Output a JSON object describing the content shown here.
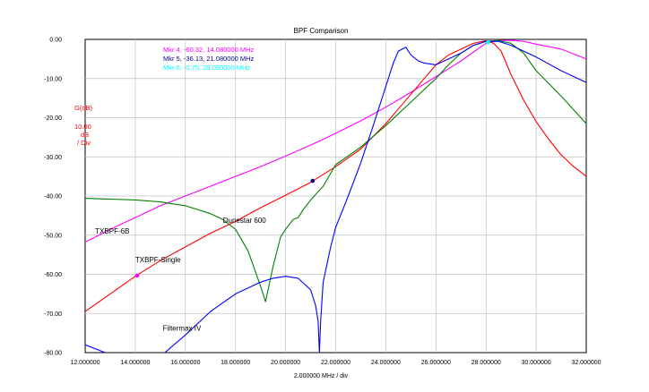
{
  "chart_data": {
    "type": "line",
    "title": "BPF Comparison",
    "xlabel": "2.000000 MHz / div",
    "ylabel_lines": [
      "G(dB)",
      "10.00",
      "dB",
      "/ Div"
    ],
    "xlim": [
      12,
      32
    ],
    "ylim": [
      -80,
      0
    ],
    "x_ticks": [
      "12.000000",
      "14.000000",
      "16.000000",
      "18.000000",
      "20.000000",
      "22.000000",
      "24.000000",
      "26.000000",
      "28.000000",
      "30.000000",
      "32.000000"
    ],
    "y_ticks": [
      "0.00",
      "-10.00",
      "-20.00",
      "-30.00",
      "-40.00",
      "-50.00",
      "-60.00",
      "-70.00",
      "-80.00"
    ],
    "grid": true,
    "markers": [
      {
        "text": "Mkr 4, -60.32, 14.080000 MHz",
        "color": "#ff00ff",
        "x": 14.08,
        "y": -60.32
      },
      {
        "text": "Mkr 5, -36.13, 21.080000 MHz",
        "color": "#000080",
        "x": 21.08,
        "y": -36.13
      },
      {
        "text": "Mkr 6, -0.75, 28.080000 MHz",
        "color": "#00ffff",
        "x": 28.08,
        "y": -0.75
      }
    ],
    "series": [
      {
        "name": "TXBPF-6B",
        "color": "#ff00ff",
        "label_at": [
          12.4,
          -49.6
        ],
        "x": [
          12,
          13,
          14,
          15,
          16,
          17,
          18,
          19,
          20,
          21,
          22,
          23,
          24,
          25,
          26,
          26.5,
          27,
          27.5,
          28,
          28.5,
          29,
          29.5,
          30,
          31,
          32
        ],
        "y": [
          -51.8,
          -48.5,
          -45.5,
          -42.5,
          -40,
          -37.5,
          -35,
          -32.5,
          -29.8,
          -27,
          -24,
          -20.8,
          -17.3,
          -13.5,
          -9.5,
          -7.5,
          -5.5,
          -3.2,
          -1,
          -0.3,
          -0.2,
          -0.5,
          -1.2,
          -2.5,
          -5
        ]
      },
      {
        "name": "TXBPF-Single",
        "color": "#ff0000",
        "label_at": [
          14.0,
          -56.9
        ],
        "x": [
          12,
          13,
          14,
          15,
          16,
          17,
          18,
          19,
          20,
          21,
          22,
          23,
          24,
          25,
          26,
          26.5,
          27,
          27.5,
          28,
          28.3,
          28.6,
          29,
          29.5,
          30,
          30.5,
          31,
          31.5,
          32
        ],
        "y": [
          -69.5,
          -65,
          -60.5,
          -56.5,
          -53,
          -49.5,
          -46.5,
          -43,
          -39.8,
          -36.5,
          -32.5,
          -28,
          -21.5,
          -14,
          -6.5,
          -4,
          -2.5,
          -1,
          -0.3,
          -1,
          -3,
          -9,
          -15.5,
          -21,
          -25.5,
          -29.5,
          -32.5,
          -35
        ]
      },
      {
        "name": "Dunestar 600",
        "color": "#008000",
        "label_at": [
          17.5,
          -46.8
        ],
        "x": [
          12,
          14,
          15,
          16,
          17,
          17.5,
          18,
          18.5,
          19,
          19.2,
          19.5,
          19.8,
          20,
          20.3,
          20.5,
          20.7,
          21,
          21.5,
          22,
          23,
          24,
          25,
          25.5,
          26,
          26.5,
          27,
          27.5,
          28,
          28.5,
          29,
          29.5,
          30,
          31,
          32
        ],
        "y": [
          -40.6,
          -41,
          -41.5,
          -42.5,
          -44.5,
          -46,
          -48.5,
          -54,
          -63,
          -67,
          -58,
          -50.5,
          -48.5,
          -46,
          -45.5,
          -43.5,
          -41,
          -37.5,
          -32,
          -27.5,
          -22,
          -16,
          -13,
          -10,
          -6.5,
          -3.5,
          -1.5,
          -0.5,
          -0.3,
          -1,
          -3.5,
          -8,
          -14.5,
          -21.5
        ]
      },
      {
        "name": "Filtermax IV",
        "color": "#0000ff",
        "label_at": [
          15.1,
          -74.4
        ],
        "x": [
          12,
          13,
          13.5,
          14,
          15,
          16,
          17,
          18,
          19,
          19.5,
          20,
          20.5,
          21,
          21.2,
          21.3,
          21.35,
          21.4,
          21.5,
          21.8,
          22,
          22.5,
          23,
          23.5,
          24,
          24.3,
          24.5,
          24.8,
          25,
          25.3,
          25.5,
          26,
          26.5,
          27,
          27.5,
          28,
          28.5,
          29,
          29.5,
          30,
          31,
          32
        ],
        "y": [
          -78,
          -80.5,
          -82,
          -83,
          -81,
          -75.5,
          -69.5,
          -65,
          -62,
          -61,
          -60.5,
          -61,
          -64,
          -68,
          -72,
          -80,
          -72,
          -62,
          -53,
          -48,
          -40,
          -31.5,
          -22,
          -12,
          -6,
          -3,
          -2,
          -4,
          -5.5,
          -6,
          -6.5,
          -5,
          -3.5,
          -1.5,
          -0.5,
          -0.5,
          -1.5,
          -3,
          -4.5,
          -8,
          -11
        ]
      }
    ]
  }
}
